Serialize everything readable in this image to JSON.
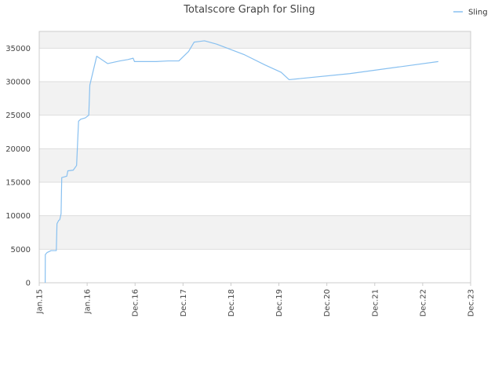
{
  "chart_data": {
    "type": "line",
    "title": "Totalscore Graph for Sling",
    "xlabel": "",
    "ylabel": "",
    "grid": true,
    "legend_position": "top-right",
    "x_ticks": [
      "Jan.15",
      "Jan.16",
      "Dec.16",
      "Dec.17",
      "Dec.18",
      "Dec.19",
      "Dec.20",
      "Dec.21",
      "Dec.22",
      "Dec.23"
    ],
    "xlim": [
      "2015-01-01",
      "2023-12-01"
    ],
    "ylim": [
      0,
      37500
    ],
    "y_ticks": [
      0,
      5000,
      10000,
      15000,
      20000,
      25000,
      30000,
      35000
    ],
    "colors": {
      "line": "#88c0f0",
      "band": "#f2f2f2",
      "grid": "#dddddd",
      "axis": "#cccccc"
    },
    "series": [
      {
        "name": "Sling",
        "points": [
          [
            "2015-02-15",
            0
          ],
          [
            "2015-02-16",
            4200
          ],
          [
            "2015-03-01",
            4500
          ],
          [
            "2015-04-01",
            4800
          ],
          [
            "2015-05-10",
            4800
          ],
          [
            "2015-05-15",
            8800
          ],
          [
            "2015-05-28",
            9300
          ],
          [
            "2015-06-05",
            9400
          ],
          [
            "2015-06-15",
            10300
          ],
          [
            "2015-06-20",
            15700
          ],
          [
            "2015-07-10",
            15800
          ],
          [
            "2015-07-28",
            15900
          ],
          [
            "2015-08-05",
            16700
          ],
          [
            "2015-09-15",
            16800
          ],
          [
            "2015-10-10",
            17500
          ],
          [
            "2015-10-25",
            24100
          ],
          [
            "2015-11-10",
            24400
          ],
          [
            "2015-12-15",
            24600
          ],
          [
            "2016-01-10",
            25000
          ],
          [
            "2016-01-18",
            29500
          ],
          [
            "2016-03-10",
            33800
          ],
          [
            "2016-06-01",
            32700
          ],
          [
            "2016-09-01",
            33100
          ],
          [
            "2016-11-01",
            33300
          ],
          [
            "2016-12-10",
            33500
          ],
          [
            "2016-12-20",
            33000
          ],
          [
            "2017-06-01",
            33000
          ],
          [
            "2017-09-01",
            33100
          ],
          [
            "2017-11-20",
            33100
          ],
          [
            "2018-02-01",
            34500
          ],
          [
            "2018-03-15",
            35900
          ],
          [
            "2018-06-01",
            36100
          ],
          [
            "2018-09-01",
            35600
          ],
          [
            "2019-04-01",
            34000
          ],
          [
            "2019-09-01",
            32500
          ],
          [
            "2020-01-01",
            31400
          ],
          [
            "2020-03-01",
            30300
          ],
          [
            "2021-06-01",
            31200
          ],
          [
            "2023-04-01",
            33000
          ]
        ]
      }
    ]
  }
}
